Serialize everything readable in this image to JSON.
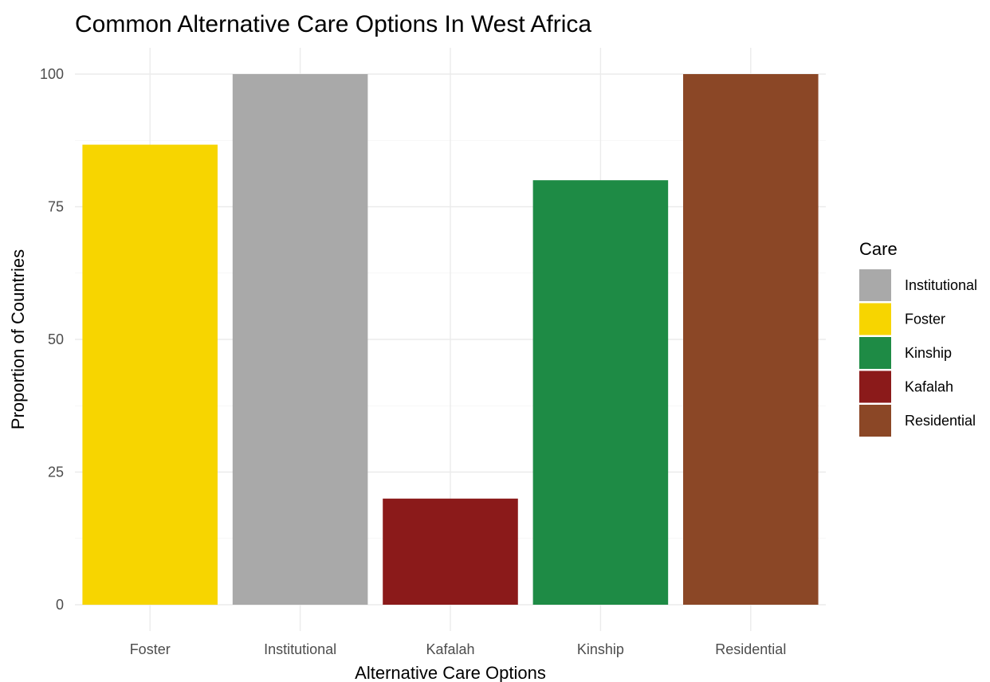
{
  "chart_data": {
    "type": "bar",
    "title": "Common Alternative Care Options In West Africa",
    "xlabel": "Alternative Care Options",
    "ylabel": "Proportion of Countries",
    "categories": [
      "Foster",
      "Institutional",
      "Kafalah",
      "Kinship",
      "Residential"
    ],
    "values": [
      86.7,
      100,
      20,
      80,
      100
    ],
    "colors": [
      "#F7D500",
      "#A9A9A9",
      "#8B1A1A",
      "#1E8B45",
      "#8B4726"
    ],
    "ylim": [
      0,
      100
    ],
    "yticks": [
      0,
      25,
      50,
      75,
      100
    ],
    "grid": true,
    "legend": {
      "title": "Care",
      "position": "right",
      "entries": [
        {
          "label": "Institutional",
          "color": "#A9A9A9"
        },
        {
          "label": "Foster",
          "color": "#F7D500"
        },
        {
          "label": "Kinship",
          "color": "#1E8B45"
        },
        {
          "label": "Kafalah",
          "color": "#8B1A1A"
        },
        {
          "label": "Residential",
          "color": "#8B4726"
        }
      ]
    }
  }
}
